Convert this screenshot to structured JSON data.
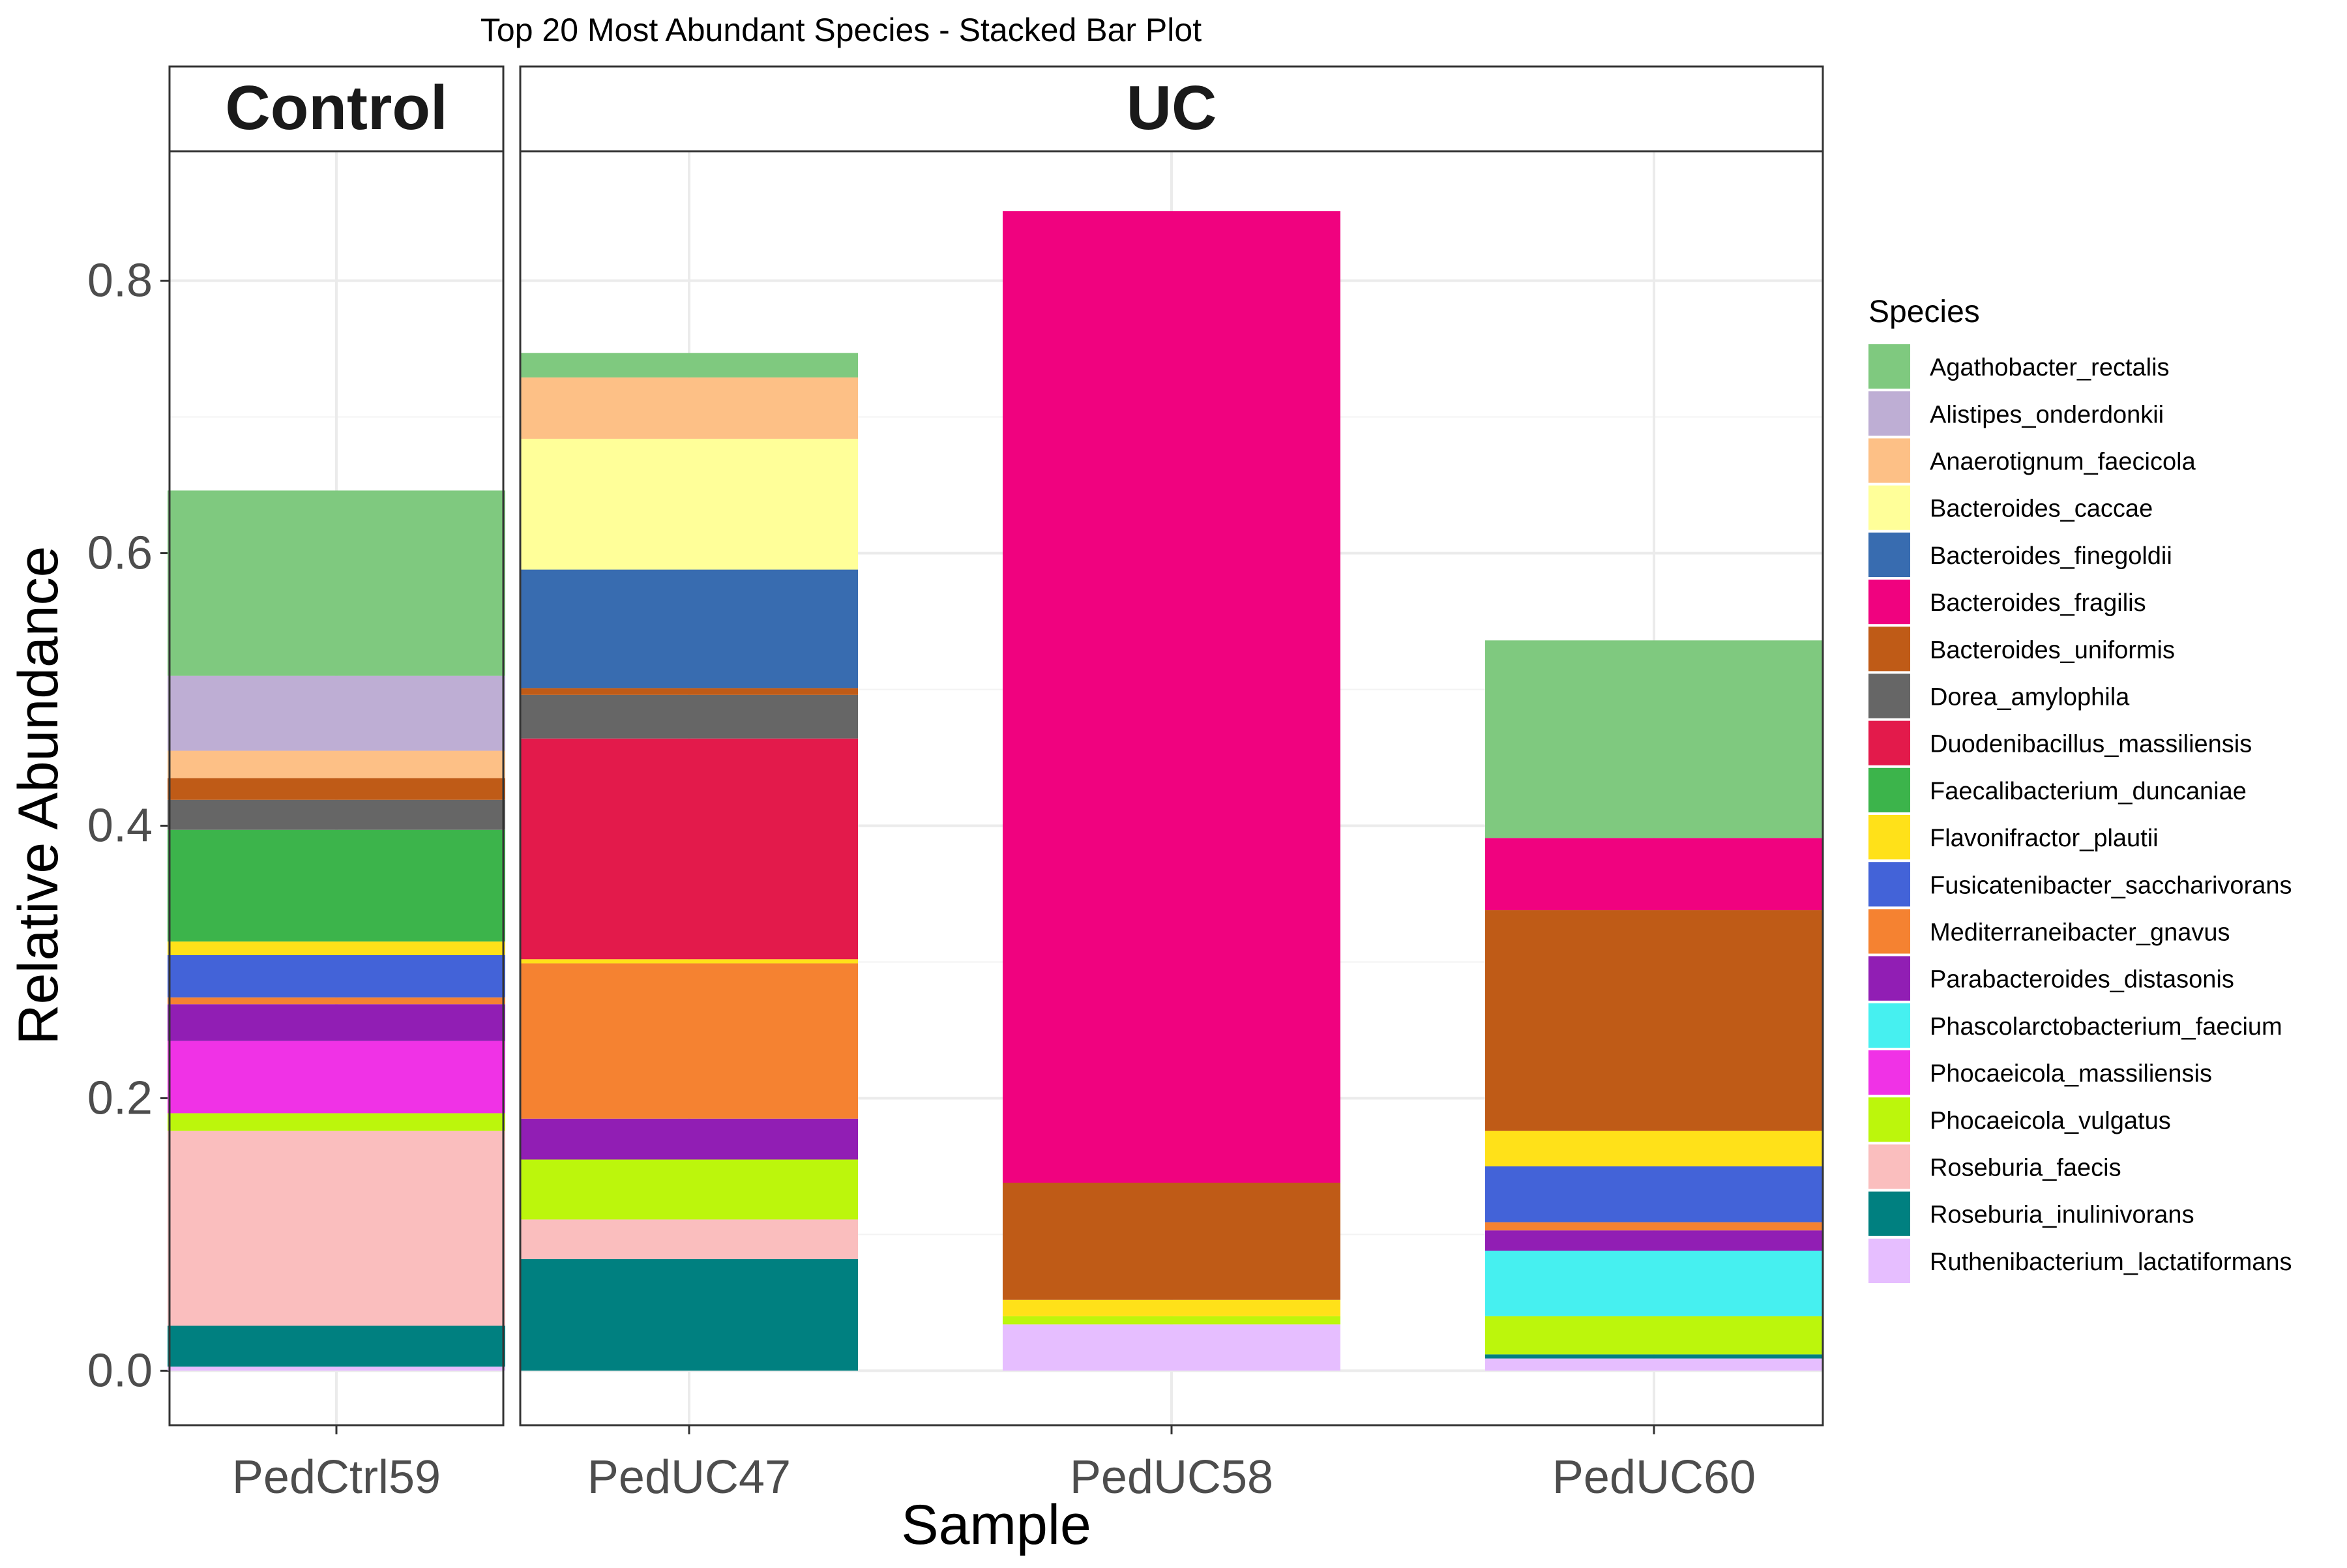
{
  "chart_data": {
    "type": "bar",
    "stacked": true,
    "title": "Top 20 Most Abundant Species - Stacked Bar Plot",
    "xlabel": "Sample",
    "ylabel": "Relative Abundance",
    "ylim": [
      -0.04,
      0.895
    ],
    "yticks": [
      "0.0",
      "0.2",
      "0.4",
      "0.6",
      "0.8"
    ],
    "ytick_values": [
      0.0,
      0.2,
      0.4,
      0.6,
      0.8
    ],
    "grid": true,
    "legend_title": "Species",
    "legend_position": "right",
    "facets": [
      {
        "label": "Control",
        "samples": [
          "PedCtrl59"
        ]
      },
      {
        "label": "UC",
        "samples": [
          "PedUC47",
          "PedUC58",
          "PedUC60"
        ]
      }
    ],
    "species": [
      {
        "name": "Agathobacter_rectalis",
        "color": "#7FC97F"
      },
      {
        "name": "Alistipes_onderdonkii",
        "color": "#BEAED4"
      },
      {
        "name": "Anaerotignum_faecicola",
        "color": "#FDC086"
      },
      {
        "name": "Bacteroides_caccae",
        "color": "#FFFF99"
      },
      {
        "name": "Bacteroides_finegoldii",
        "color": "#386CB0"
      },
      {
        "name": "Bacteroides_fragilis",
        "color": "#F0027F"
      },
      {
        "name": "Bacteroides_uniformis",
        "color": "#BF5B17"
      },
      {
        "name": "Dorea_amylophila",
        "color": "#666666"
      },
      {
        "name": "Duodenibacillus_massiliensis",
        "color": "#E31A4B"
      },
      {
        "name": "Faecalibacterium_duncaniae",
        "color": "#3CB44B"
      },
      {
        "name": "Flavonifractor_plautii",
        "color": "#FFE119"
      },
      {
        "name": "Fusicatenibacter_saccharivorans",
        "color": "#4363D8"
      },
      {
        "name": "Mediterraneibacter_gnavus",
        "color": "#F58231"
      },
      {
        "name": "Parabacteroides_distasonis",
        "color": "#911EB4"
      },
      {
        "name": "Phascolarctobacterium_faecium",
        "color": "#46F0F0"
      },
      {
        "name": "Phocaeicola_massiliensis",
        "color": "#F032E6"
      },
      {
        "name": "Phocaeicola_vulgatus",
        "color": "#BCF60C"
      },
      {
        "name": "Roseburia_faecis",
        "color": "#FABEBE"
      },
      {
        "name": "Roseburia_inulinivorans",
        "color": "#008080"
      },
      {
        "name": "Ruthenibacterium_lactatiformans",
        "color": "#E6BEFF"
      }
    ],
    "samples": [
      {
        "name": "PedCtrl59",
        "facet": "Control",
        "values": {
          "Agathobacter_rectalis": 0.136,
          "Alistipes_onderdonkii": 0.055,
          "Anaerotignum_faecicola": 0.02,
          "Bacteroides_caccae": 0,
          "Bacteroides_finegoldii": 0,
          "Bacteroides_fragilis": 0,
          "Bacteroides_uniformis": 0.016,
          "Dorea_amylophila": 0.022,
          "Duodenibacillus_massiliensis": 0,
          "Faecalibacterium_duncaniae": 0.082,
          "Flavonifractor_plautii": 0.01,
          "Fusicatenibacter_saccharivorans": 0.031,
          "Mediterraneibacter_gnavus": 0.005,
          "Parabacteroides_distasonis": 0.027,
          "Phascolarctobacterium_faecium": 0,
          "Phocaeicola_massiliensis": 0.053,
          "Phocaeicola_vulgatus": 0.013,
          "Roseburia_faecis": 0.143,
          "Roseburia_inulinivorans": 0.03,
          "Ruthenibacterium_lactatiformans": 0.003
        }
      },
      {
        "name": "PedUC47",
        "facet": "UC",
        "values": {
          "Agathobacter_rectalis": 0.018,
          "Alistipes_onderdonkii": 0,
          "Anaerotignum_faecicola": 0.045,
          "Bacteroides_caccae": 0.096,
          "Bacteroides_finegoldii": 0.087,
          "Bacteroides_fragilis": 0,
          "Bacteroides_uniformis": 0.005,
          "Dorea_amylophila": 0.032,
          "Duodenibacillus_massiliensis": 0.162,
          "Faecalibacterium_duncaniae": 0,
          "Flavonifractor_plautii": 0.003,
          "Fusicatenibacter_saccharivorans": 0,
          "Mediterraneibacter_gnavus": 0.114,
          "Parabacteroides_distasonis": 0.03,
          "Phascolarctobacterium_faecium": 0,
          "Phocaeicola_massiliensis": 0,
          "Phocaeicola_vulgatus": 0.044,
          "Roseburia_faecis": 0.029,
          "Roseburia_inulinivorans": 0.082,
          "Ruthenibacterium_lactatiformans": 0
        }
      },
      {
        "name": "PedUC58",
        "facet": "UC",
        "values": {
          "Agathobacter_rectalis": 0,
          "Alistipes_onderdonkii": 0,
          "Anaerotignum_faecicola": 0,
          "Bacteroides_caccae": 0,
          "Bacteroides_finegoldii": 0,
          "Bacteroides_fragilis": 0.713,
          "Bacteroides_uniformis": 0.086,
          "Dorea_amylophila": 0,
          "Duodenibacillus_massiliensis": 0,
          "Faecalibacterium_duncaniae": 0,
          "Flavonifractor_plautii": 0.012,
          "Fusicatenibacter_saccharivorans": 0,
          "Mediterraneibacter_gnavus": 0,
          "Parabacteroides_distasonis": 0,
          "Phascolarctobacterium_faecium": 0,
          "Phocaeicola_massiliensis": 0,
          "Phocaeicola_vulgatus": 0.006,
          "Roseburia_faecis": 0,
          "Roseburia_inulinivorans": 0,
          "Ruthenibacterium_lactatiformans": 0.034
        }
      },
      {
        "name": "PedUC60",
        "facet": "UC",
        "values": {
          "Agathobacter_rectalis": 0.145,
          "Alistipes_onderdonkii": 0,
          "Anaerotignum_faecicola": 0,
          "Bacteroides_caccae": 0,
          "Bacteroides_finegoldii": 0,
          "Bacteroides_fragilis": 0.053,
          "Bacteroides_uniformis": 0.162,
          "Dorea_amylophila": 0,
          "Duodenibacillus_massiliensis": 0,
          "Faecalibacterium_duncaniae": 0,
          "Flavonifractor_plautii": 0.026,
          "Fusicatenibacter_saccharivorans": 0.041,
          "Mediterraneibacter_gnavus": 0.006,
          "Parabacteroides_distasonis": 0.015,
          "Phascolarctobacterium_faecium": 0.048,
          "Phocaeicola_massiliensis": 0,
          "Phocaeicola_vulgatus": 0.028,
          "Roseburia_faecis": 0,
          "Roseburia_inulinivorans": 0.003,
          "Ruthenibacterium_lactatiformans": 0.009
        }
      }
    ]
  }
}
